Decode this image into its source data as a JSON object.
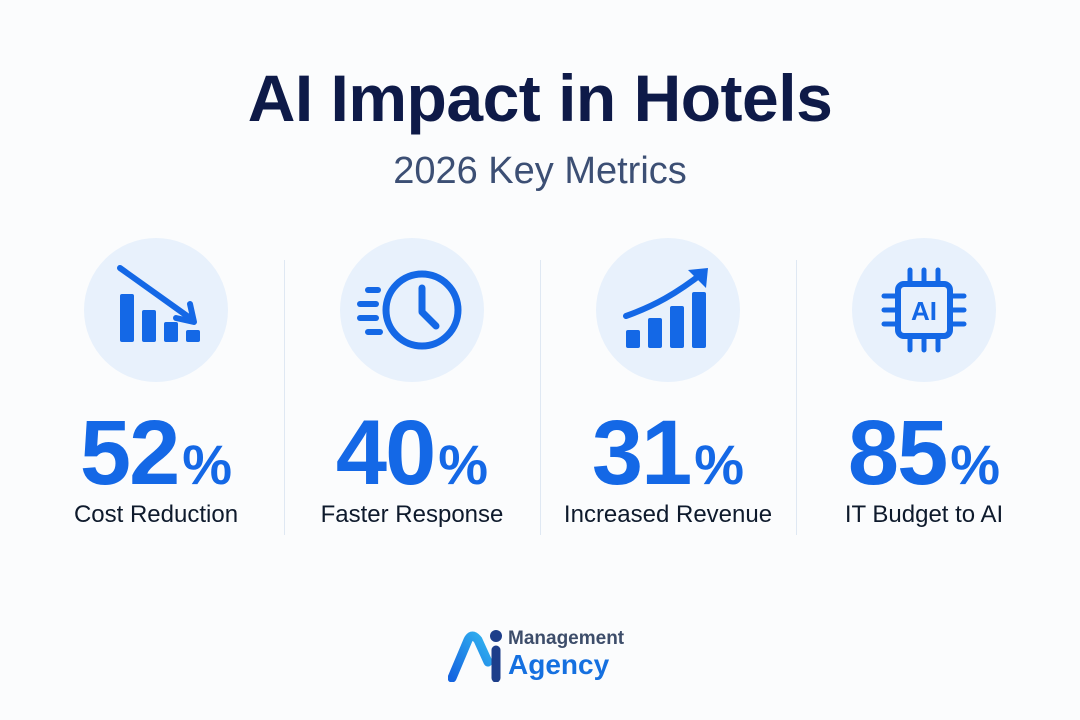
{
  "header": {
    "title": "AI Impact in Hotels",
    "subtitle": "2026 Key Metrics"
  },
  "metrics": [
    {
      "value": "52",
      "unit": "%",
      "label": "Cost Reduction",
      "icon": "bar-chart-down-icon"
    },
    {
      "value": "40",
      "unit": "%",
      "label": "Faster Response",
      "icon": "fast-clock-icon"
    },
    {
      "value": "31",
      "unit": "%",
      "label": "Increased Revenue",
      "icon": "bar-chart-up-icon"
    },
    {
      "value": "85",
      "unit": "%",
      "label": "IT Budget to AI",
      "icon": "ai-chip-icon"
    }
  ],
  "chip": {
    "text": "AI"
  },
  "logo": {
    "line1": "Management",
    "line2": "Agency",
    "mark_text": "Ai"
  },
  "colors": {
    "accent": "#1468e6",
    "title": "#0e1a48",
    "subtitle": "#3c4f74",
    "icon_bg": "#e8f1fc"
  }
}
